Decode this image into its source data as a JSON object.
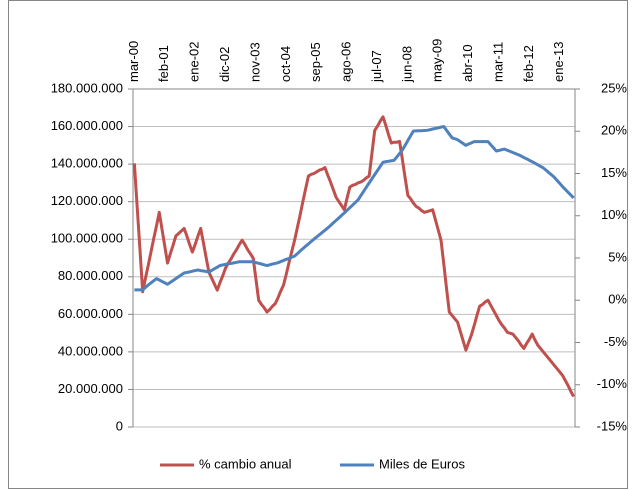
{
  "chart_data": {
    "type": "line",
    "categories": [
      "mar-00",
      null,
      null,
      null,
      null,
      null,
      null,
      null,
      null,
      null,
      null,
      "feb-01",
      null,
      null,
      null,
      null,
      null,
      null,
      null,
      null,
      null,
      null,
      "ene-02",
      null,
      null,
      null,
      null,
      null,
      null,
      null,
      null,
      null,
      null,
      "dic-02",
      null,
      null,
      null,
      null,
      null,
      null,
      null,
      null,
      null,
      null,
      "nov-03",
      null,
      null,
      null,
      null,
      null,
      null,
      null,
      null,
      null,
      null,
      "oct-04",
      null,
      null,
      null,
      null,
      null,
      null,
      null,
      null,
      null,
      null,
      "sep-05",
      null,
      null,
      null,
      null,
      null,
      null,
      null,
      null,
      null,
      null,
      "ago-06",
      null,
      null,
      null,
      null,
      null,
      null,
      null,
      null,
      null,
      null,
      "jul-07",
      null,
      null,
      null,
      null,
      null,
      null,
      null,
      null,
      null,
      null,
      "jun-08",
      null,
      null,
      null,
      null,
      null,
      null,
      null,
      null,
      null,
      null,
      "may-09",
      null,
      null,
      null,
      null,
      null,
      null,
      null,
      null,
      null,
      null,
      "abr-10",
      null,
      null,
      null,
      null,
      null,
      null,
      null,
      null,
      null,
      null,
      "mar-11",
      null,
      null,
      null,
      null,
      null,
      null,
      null,
      null,
      null,
      null,
      "feb-12",
      null,
      null,
      null,
      null,
      null,
      null,
      null,
      null,
      null,
      null,
      "ene-13",
      null,
      null,
      null,
      null,
      null
    ],
    "series": [
      {
        "name": "% cambio anual",
        "color": "#c0504d",
        "axis": "y2",
        "values": [
          16.2,
          11.1,
          6.1,
          1.0,
          2.6,
          4.1,
          5.7,
          7.3,
          8.8,
          10.4,
          8.4,
          6.4,
          4.4,
          5.5,
          6.5,
          7.6,
          7.9,
          8.2,
          8.5,
          7.6,
          6.6,
          5.7,
          6.6,
          7.6,
          8.5,
          6.8,
          5.0,
          3.3,
          2.6,
          1.9,
          1.2,
          2.1,
          2.9,
          3.8,
          4.4,
          4.9,
          5.5,
          6.0,
          6.6,
          7.1,
          6.6,
          6.0,
          5.5,
          5.0,
          2.5,
          0.0,
          -0.5,
          -0.9,
          -1.4,
          -1.1,
          -0.7,
          -0.4,
          0.3,
          1.1,
          1.8,
          3.1,
          4.5,
          5.8,
          7.1,
          8.6,
          10.1,
          11.7,
          13.2,
          14.7,
          14.9,
          15.0,
          15.2,
          15.4,
          15.5,
          15.7,
          14.8,
          14.0,
          13.1,
          12.2,
          11.7,
          11.2,
          10.7,
          12.1,
          13.4,
          13.6,
          13.7,
          13.9,
          14.0,
          14.2,
          14.5,
          14.7,
          17.4,
          20.1,
          20.6,
          21.2,
          21.7,
          20.7,
          19.6,
          18.6,
          18.7,
          18.7,
          18.8,
          16.7,
          14.5,
          12.4,
          12.0,
          11.5,
          11.1,
          10.9,
          10.6,
          10.4,
          10.5,
          10.6,
          10.7,
          9.5,
          8.3,
          7.1,
          4.3,
          1.4,
          -1.4,
          -1.8,
          -2.2,
          -2.6,
          -3.7,
          -4.8,
          -5.9,
          -5.0,
          -4.1,
          -3.0,
          -1.8,
          -0.7,
          -0.5,
          -0.2,
          0.0,
          -0.6,
          -1.2,
          -1.8,
          -2.4,
          -2.9,
          -3.3,
          -3.8,
          -3.9,
          -4.0,
          -4.4,
          -4.8,
          -5.3,
          -5.7,
          -5.1,
          -4.6,
          -4.0,
          -4.7,
          -5.3,
          -5.7,
          -6.1,
          -6.5,
          -6.9,
          -7.3,
          -7.7,
          -8.1,
          -8.5,
          -8.9,
          -9.5,
          -10.1,
          -10.8,
          -11.4
        ]
      },
      {
        "name": "Miles de Euros",
        "color": "#4f81bd",
        "values": [
          73000000,
          73000000,
          73000000,
          73000000,
          74300000,
          75600000,
          76700000,
          77900000,
          79000000,
          78300000,
          77500000,
          76800000,
          76000000,
          77000000,
          78000000,
          79000000,
          80000000,
          81000000,
          82000000,
          82300000,
          82600000,
          83000000,
          83300000,
          83600000,
          83300000,
          83100000,
          82800000,
          82500000,
          83400000,
          84300000,
          85100000,
          86000000,
          86300000,
          86600000,
          86900000,
          87100000,
          87400000,
          87700000,
          88000000,
          88000000,
          88000000,
          88000000,
          88000000,
          88000000,
          87600000,
          87200000,
          86800000,
          86400000,
          86000000,
          86400000,
          86800000,
          87100000,
          87500000,
          88100000,
          88700000,
          89300000,
          89800000,
          90400000,
          91000000,
          92300000,
          93700000,
          95000000,
          96300000,
          97500000,
          98800000,
          100000000,
          101200000,
          102400000,
          103600000,
          104800000,
          106000000,
          107300000,
          108700000,
          110000000,
          111300000,
          112700000,
          114000000,
          115400000,
          116800000,
          118200000,
          119600000,
          121000000,
          123300000,
          125500000,
          127800000,
          130000000,
          132200000,
          134400000,
          136600000,
          138800000,
          141000000,
          141300000,
          141500000,
          141800000,
          142000000,
          143800000,
          145700000,
          147500000,
          150000000,
          152600000,
          155100000,
          157600000,
          157700000,
          157800000,
          157800000,
          157900000,
          158000000,
          158300000,
          158700000,
          159000000,
          159300000,
          159700000,
          160000000,
          158000000,
          156000000,
          154000000,
          153500000,
          153000000,
          152000000,
          151000000,
          150000000,
          150700000,
          151300000,
          152000000,
          152000000,
          152000000,
          152000000,
          152000000,
          152000000,
          150300000,
          148700000,
          147000000,
          147300000,
          147700000,
          148000000,
          147400000,
          146800000,
          146200000,
          145600000,
          145000000,
          144300000,
          143500000,
          142800000,
          142000000,
          141300000,
          140500000,
          139700000,
          138800000,
          138000000,
          136800000,
          135500000,
          134300000,
          133000000,
          131300000,
          129700000,
          128000000,
          126500000,
          125000000,
          123500000,
          122000000
        ]
      }
    ],
    "ylim": [
      0,
      180000000
    ],
    "yticks": [
      0,
      {
        "value": 20000000,
        "label": "20.000.000"
      },
      {
        "value": 40000000,
        "label": "40.000.000"
      },
      {
        "value": 60000000,
        "label": "60.000.000"
      },
      {
        "value": 80000000,
        "label": "80.000.000"
      },
      {
        "value": 100000000,
        "label": "100.000.000"
      },
      {
        "value": 120000000,
        "label": "120.000.000"
      },
      {
        "value": 140000000,
        "label": "140.000.000"
      },
      {
        "value": 160000000,
        "label": "160.000.000"
      },
      {
        "value": 180000000,
        "label": "180.000.000"
      }
    ],
    "y2lim": [
      -15,
      25
    ],
    "y2ticks": [
      {
        "value": -15,
        "label": "-15%"
      },
      {
        "value": -10,
        "label": "-10%"
      },
      {
        "value": -5,
        "label": "-5%"
      },
      {
        "value": 0,
        "label": "0%"
      },
      {
        "value": 5,
        "label": "5%"
      },
      {
        "value": 10,
        "label": "10%"
      },
      {
        "value": 15,
        "label": "15%"
      },
      {
        "value": 20,
        "label": "20%"
      },
      {
        "value": 25,
        "label": "25%"
      }
    ],
    "grid": true,
    "legend": "bottom"
  }
}
